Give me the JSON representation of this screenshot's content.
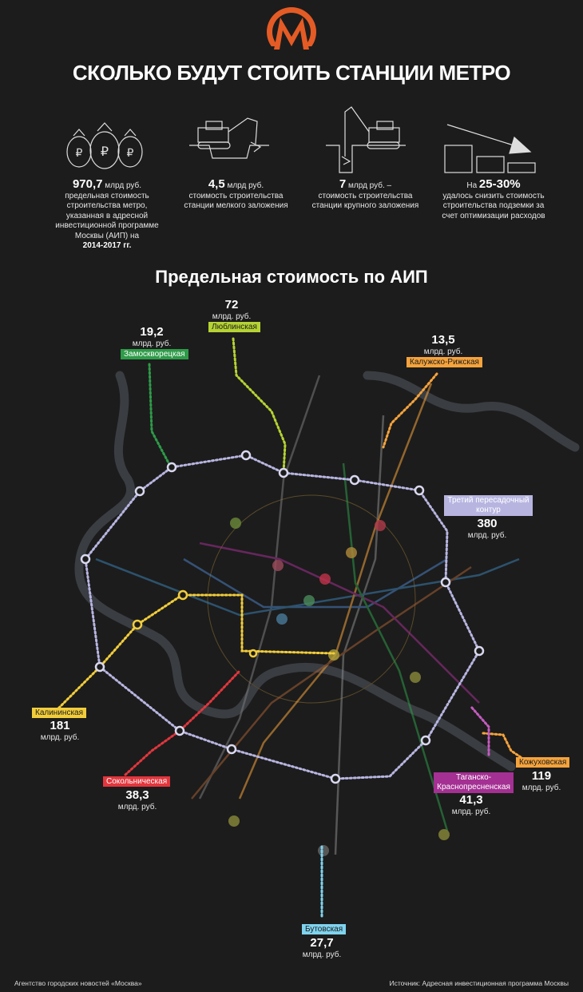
{
  "title": "СКОЛЬКО БУДУТ СТОИТЬ СТАНЦИИ МЕТРО",
  "facts": [
    {
      "value": "970,7",
      "unit": " млрд руб.",
      "text": "предельная стоимость строительства метро, указанная в адресной инвестиционной программе Москвы (АИП) на",
      "years": "2014-2017 гг."
    },
    {
      "value": "4,5",
      "unit": " млрд руб.",
      "text": "стоимость строительства станции мелкого заложения"
    },
    {
      "value": "7",
      "unit": " млрд руб. –",
      "text": "стоимость строительства станции крупного заложения"
    },
    {
      "prefix": "На ",
      "value": "25-30%",
      "text": "удалось снизить стоимость строительства подземки за счет оптимизации расходов"
    }
  ],
  "subtitle": "Предельная стоимость по АИП",
  "lines": [
    {
      "name": "Люблинская",
      "value": "72",
      "unit": "млрд. руб.",
      "color": "#b5d334"
    },
    {
      "name": "Замоскворецкая",
      "value": "19,2",
      "unit": "млрд. руб.",
      "color": "#2e9b48"
    },
    {
      "name": "Калужско-Рижская",
      "value": "13,5",
      "unit": "млрд. руб.",
      "color": "#f5a33c"
    },
    {
      "name": "Третий пересадочный контур",
      "value": "380",
      "unit": "млрд. руб.",
      "color": "#b7b5e0"
    },
    {
      "name": "Калининская",
      "value": "181",
      "unit": "млрд. руб.",
      "color": "#f2cd3b"
    },
    {
      "name": "Сокольническая",
      "value": "38,3",
      "unit": "млрд. руб.",
      "color": "#e3363d"
    },
    {
      "name": "Таганско-Краснопресненская",
      "value": "41,3",
      "unit": "млрд. руб.",
      "color": "#a43093"
    },
    {
      "name": "Кожуховская",
      "value": "119",
      "unit": "млрд. руб.",
      "color": "#f5a33c"
    },
    {
      "name": "Бутовская",
      "value": "27,7",
      "unit": "млрд. руб.",
      "color": "#7fd3ee"
    }
  ],
  "footer": {
    "left": "Агентство городских новостей «Москва»",
    "right": "Источник: Адресная инвестиционная программа Москвы"
  }
}
